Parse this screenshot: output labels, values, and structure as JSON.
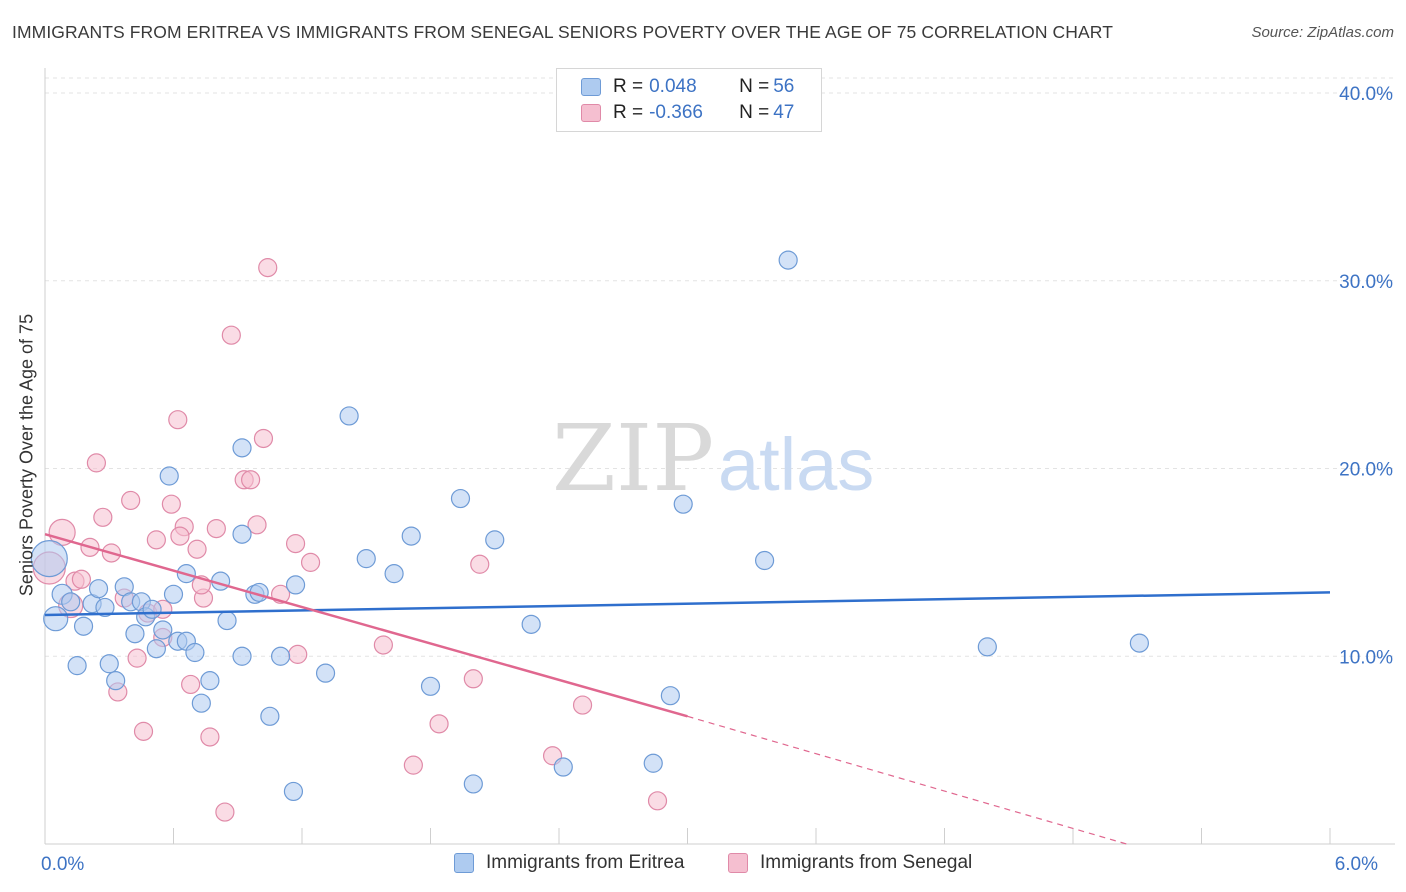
{
  "chart_data": {
    "type": "scatter",
    "title": "IMMIGRANTS FROM ERITREA VS IMMIGRANTS FROM SENEGAL SENIORS POVERTY OVER THE AGE OF 75 CORRELATION CHART",
    "source": "Source: ZipAtlas.com",
    "watermark": {
      "zip": "ZIP",
      "atlas": "atlas"
    },
    "ylabel": "Seniors Poverty Over the Age of 75",
    "xlabel": "",
    "xlim": [
      0,
      6
    ],
    "ylim": [
      0,
      40.8
    ],
    "x_tick_labels": [
      {
        "value": 0,
        "label": "0.0%"
      },
      {
        "value": 6,
        "label": "6.0%"
      }
    ],
    "y_tick_labels": [
      {
        "value": 10,
        "label": "10.0%"
      },
      {
        "value": 20,
        "label": "20.0%"
      },
      {
        "value": 30,
        "label": "30.0%"
      },
      {
        "value": 40,
        "label": "40.0%"
      }
    ],
    "colors": {
      "eritrea_fill": "#aecbf0",
      "eritrea_stroke": "#6e9bd6",
      "eritrea_line": "#2f6fcd",
      "senegal_fill": "#f5bfd0",
      "senegal_stroke": "#e08aa8",
      "senegal_line": "#e0678f",
      "tick_text": "#3d73c4",
      "grid": "#e3e3e3"
    },
    "legend": {
      "rows": [
        {
          "r_label": "R = ",
          "r_value": "0.048",
          "n_label": "N = ",
          "n_value": "56"
        },
        {
          "r_label": "R = ",
          "r_value": "-0.366",
          "n_label": "N = ",
          "n_value": "47"
        }
      ]
    },
    "series": [
      {
        "name": "Immigrants from Eritrea",
        "trend": {
          "x0": 0,
          "y0": 12.2,
          "x1": 6,
          "y1": 13.4
        },
        "points": [
          [
            0.02,
            15.2,
            18
          ],
          [
            0.05,
            12.0,
            12
          ],
          [
            0.08,
            13.3,
            10
          ],
          [
            0.12,
            12.9,
            9
          ],
          [
            0.15,
            9.5,
            9
          ],
          [
            0.18,
            11.6,
            9
          ],
          [
            0.22,
            12.8,
            9
          ],
          [
            0.25,
            13.6,
            9
          ],
          [
            0.28,
            12.6,
            9
          ],
          [
            0.3,
            9.6,
            9
          ],
          [
            0.33,
            8.7,
            9
          ],
          [
            0.37,
            13.7,
            9
          ],
          [
            0.4,
            12.9,
            9
          ],
          [
            0.42,
            11.2,
            9
          ],
          [
            0.45,
            12.9,
            9
          ],
          [
            0.47,
            12.1,
            9
          ],
          [
            0.5,
            12.5,
            9
          ],
          [
            0.52,
            10.4,
            9
          ],
          [
            0.55,
            11.4,
            9
          ],
          [
            0.58,
            19.6,
            9
          ],
          [
            0.6,
            13.3,
            9
          ],
          [
            0.62,
            10.8,
            9
          ],
          [
            0.66,
            10.8,
            9
          ],
          [
            0.7,
            10.2,
            9
          ],
          [
            0.73,
            7.5,
            9
          ],
          [
            0.77,
            8.7,
            9
          ],
          [
            0.82,
            14.0,
            9
          ],
          [
            0.85,
            11.9,
            9
          ],
          [
            0.92,
            10.0,
            9
          ],
          [
            0.98,
            13.3,
            9
          ],
          [
            1.05,
            6.8,
            9
          ],
          [
            1.1,
            10.0,
            9
          ],
          [
            1.16,
            2.8,
            9
          ],
          [
            1.31,
            9.1,
            9
          ],
          [
            1.42,
            22.8,
            9
          ],
          [
            1.5,
            15.2,
            9
          ],
          [
            1.63,
            14.4,
            9
          ],
          [
            1.71,
            16.4,
            9
          ],
          [
            1.8,
            8.4,
            9
          ],
          [
            1.94,
            18.4,
            9
          ],
          [
            2.0,
            3.2,
            9
          ],
          [
            2.1,
            16.2,
            9
          ],
          [
            2.27,
            11.7,
            9
          ],
          [
            2.42,
            4.1,
            9
          ],
          [
            2.84,
            4.3,
            9
          ],
          [
            2.92,
            7.9,
            9
          ],
          [
            2.98,
            18.1,
            9
          ],
          [
            3.36,
            15.1,
            9
          ],
          [
            3.47,
            31.1,
            9
          ],
          [
            4.4,
            10.5,
            9
          ],
          [
            5.11,
            10.7,
            9
          ],
          [
            0.66,
            14.4,
            9
          ],
          [
            1.17,
            13.8,
            9
          ],
          [
            1.0,
            13.4,
            9
          ],
          [
            0.92,
            16.5,
            9
          ],
          [
            0.92,
            21.1,
            9
          ]
        ]
      },
      {
        "name": "Immigrants from Senegal",
        "trend": {
          "x0": 0,
          "y0": 16.5,
          "x1": 3.0,
          "y1": 6.8
        },
        "trend_dashed": {
          "x0": 3.0,
          "y0": 6.8,
          "x1": 5.05,
          "y1": 0.0
        },
        "points": [
          [
            0.02,
            14.7,
            16
          ],
          [
            0.08,
            16.6,
            13
          ],
          [
            0.12,
            12.7,
            12
          ],
          [
            0.14,
            14.0,
            9
          ],
          [
            0.17,
            14.1,
            9
          ],
          [
            0.21,
            15.8,
            9
          ],
          [
            0.24,
            20.3,
            9
          ],
          [
            0.27,
            17.4,
            9
          ],
          [
            0.31,
            15.5,
            9
          ],
          [
            0.34,
            8.1,
            9
          ],
          [
            0.37,
            13.1,
            9
          ],
          [
            0.4,
            18.3,
            9
          ],
          [
            0.43,
            9.9,
            9
          ],
          [
            0.46,
            6.0,
            9
          ],
          [
            0.48,
            12.3,
            9
          ],
          [
            0.52,
            16.2,
            9
          ],
          [
            0.55,
            11.0,
            9
          ],
          [
            0.59,
            18.1,
            9
          ],
          [
            0.62,
            22.6,
            9
          ],
          [
            0.65,
            16.9,
            9
          ],
          [
            0.68,
            8.5,
            9
          ],
          [
            0.71,
            15.7,
            9
          ],
          [
            0.74,
            13.1,
            9
          ],
          [
            0.77,
            5.7,
            9
          ],
          [
            0.8,
            16.8,
            9
          ],
          [
            0.84,
            1.7,
            9
          ],
          [
            0.87,
            27.1,
            9
          ],
          [
            0.93,
            19.4,
            9
          ],
          [
            0.96,
            19.4,
            9
          ],
          [
            0.99,
            17.0,
            9
          ],
          [
            1.02,
            21.6,
            9
          ],
          [
            1.04,
            30.7,
            9
          ],
          [
            1.1,
            13.3,
            9
          ],
          [
            1.17,
            16.0,
            9
          ],
          [
            1.24,
            15.0,
            9
          ],
          [
            1.18,
            10.1,
            9
          ],
          [
            1.58,
            10.6,
            9
          ],
          [
            1.72,
            4.2,
            9
          ],
          [
            1.84,
            6.4,
            9
          ],
          [
            2.0,
            8.8,
            9
          ],
          [
            2.03,
            14.9,
            9
          ],
          [
            2.37,
            4.7,
            9
          ],
          [
            2.51,
            7.4,
            9
          ],
          [
            2.86,
            2.3,
            9
          ],
          [
            0.73,
            13.8,
            9
          ],
          [
            0.55,
            12.5,
            9
          ],
          [
            0.63,
            16.4,
            9
          ]
        ]
      }
    ]
  }
}
